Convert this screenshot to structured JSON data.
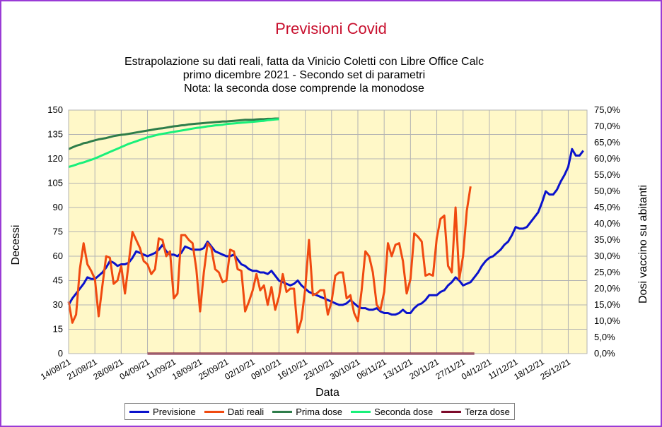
{
  "chart_data": {
    "type": "line",
    "title": "Previsioni Covid",
    "subtitle": [
      "Estrapolazione su dati reali, fatta da Vinicio Coletti con Libre Office Calc",
      "primo dicembre 2021 - Secondo set di parametri",
      "Nota: la seconda dose comprende la monodose"
    ],
    "xlabel": "Data",
    "ylabel": "Decessi",
    "y2label": "Dosi vaccino su abitanti",
    "ylim": [
      0,
      150
    ],
    "y2lim": [
      0,
      0.75
    ],
    "yticks": [
      "0",
      "15",
      "30",
      "45",
      "60",
      "75",
      "90",
      "105",
      "120",
      "135",
      "150"
    ],
    "y2ticks": [
      "0,0%",
      "5,0%",
      "10,0%",
      "15,0%",
      "20,0%",
      "25,0%",
      "30,0%",
      "35,0%",
      "40,0%",
      "45,0%",
      "50,0%",
      "55,0%",
      "60,0%",
      "65,0%",
      "70,0%",
      "75,0%"
    ],
    "xticks": [
      "14/08/21",
      "21/08/21",
      "28/08/21",
      "04/09/21",
      "11/09/21",
      "18/09/21",
      "25/09/21",
      "02/10/21",
      "09/10/21",
      "16/10/21",
      "23/10/21",
      "30/10/21",
      "06/11/21",
      "13/11/21",
      "20/11/21",
      "27/11/21",
      "04/12/21",
      "11/12/21",
      "18/12/21",
      "25/12/21"
    ],
    "x_start": "14/08/21",
    "grid": true,
    "legend_position": "bottom",
    "series": [
      {
        "name": "Previsione",
        "axis": "left",
        "color": "#0a12cc",
        "start_day": 0,
        "values": [
          30,
          34,
          37,
          40,
          43,
          47,
          46,
          46,
          48,
          50,
          53,
          57,
          56,
          54,
          55,
          55,
          56,
          59,
          63,
          62,
          61,
          60,
          61,
          62,
          64,
          67,
          63,
          61,
          61,
          60,
          62,
          66,
          65,
          64,
          64,
          64,
          65,
          69,
          66,
          63,
          62,
          61,
          60,
          60,
          61,
          58,
          55,
          54,
          52,
          51,
          51,
          50,
          50,
          49,
          51,
          48,
          45,
          44,
          43,
          42,
          43,
          45,
          42,
          40,
          38,
          37,
          36,
          35,
          34,
          33,
          32,
          31,
          30,
          30,
          31,
          33,
          31,
          29,
          28,
          28,
          27,
          27,
          28,
          26,
          25,
          25,
          24,
          24,
          25,
          27,
          25,
          25,
          28,
          30,
          31,
          33,
          36,
          36,
          36,
          38,
          39,
          42,
          44,
          47,
          45,
          42,
          43,
          44,
          47,
          50,
          54,
          57,
          59,
          60,
          62,
          64,
          67,
          69,
          73,
          78,
          77,
          77,
          78,
          81,
          84,
          87,
          93,
          100,
          98,
          98,
          101,
          106,
          110,
          115,
          126,
          122,
          122,
          125
        ]
      },
      {
        "name": "Dati reali",
        "axis": "left",
        "color": "#f04a10",
        "start_day": 0,
        "values": [
          32,
          19,
          24,
          52,
          68,
          55,
          51,
          46,
          23,
          42,
          60,
          59,
          43,
          45,
          54,
          37,
          56,
          75,
          70,
          65,
          57,
          55,
          49,
          52,
          71,
          70,
          60,
          63,
          34,
          37,
          73,
          73,
          70,
          68,
          52,
          26,
          50,
          68,
          65,
          52,
          50,
          44,
          45,
          64,
          63,
          52,
          51,
          26,
          32,
          39,
          49,
          39,
          42,
          30,
          41,
          27,
          35,
          49,
          38,
          40,
          40,
          13,
          21,
          40,
          70,
          36,
          37,
          39,
          39,
          24,
          32,
          48,
          50,
          50,
          34,
          36,
          25,
          20,
          39,
          63,
          60,
          50,
          30,
          27,
          38,
          68,
          60,
          67,
          68,
          57,
          37,
          46,
          74,
          72,
          69,
          48,
          49,
          48,
          71,
          83,
          85,
          54,
          50,
          90,
          46,
          60,
          88,
          103
        ]
      },
      {
        "name": "Prima dose",
        "axis": "right",
        "color": "#2e7d4a",
        "start_day": 0,
        "values": [
          0.63,
          0.635,
          0.64,
          0.643,
          0.648,
          0.65,
          0.654,
          0.657,
          0.66,
          0.662,
          0.664,
          0.667,
          0.67,
          0.672,
          0.674,
          0.675,
          0.677,
          0.679,
          0.681,
          0.683,
          0.685,
          0.687,
          0.689,
          0.691,
          0.693,
          0.694,
          0.696,
          0.698,
          0.7,
          0.701,
          0.703,
          0.704,
          0.706,
          0.707,
          0.708,
          0.709,
          0.71,
          0.711,
          0.712,
          0.713,
          0.714,
          0.715,
          0.715,
          0.716,
          0.717,
          0.718,
          0.719,
          0.72,
          0.72,
          0.72,
          0.721,
          0.722,
          0.722,
          0.723,
          0.723,
          0.724,
          0.724
        ]
      },
      {
        "name": "Seconda dose",
        "axis": "right",
        "color": "#19f07a",
        "start_day": 0,
        "values": [
          0.575,
          0.578,
          0.582,
          0.586,
          0.589,
          0.593,
          0.597,
          0.601,
          0.606,
          0.611,
          0.616,
          0.621,
          0.626,
          0.631,
          0.636,
          0.641,
          0.646,
          0.65,
          0.654,
          0.658,
          0.662,
          0.666,
          0.669,
          0.672,
          0.675,
          0.677,
          0.679,
          0.681,
          0.683,
          0.685,
          0.687,
          0.689,
          0.691,
          0.693,
          0.695,
          0.696,
          0.698,
          0.7,
          0.701,
          0.703,
          0.704,
          0.705,
          0.707,
          0.708,
          0.709,
          0.71,
          0.711,
          0.712,
          0.713,
          0.714,
          0.715,
          0.716,
          0.717,
          0.719,
          0.72,
          0.721,
          0.722
        ]
      },
      {
        "name": "Terza dose",
        "axis": "right",
        "color": "#7d0a2a",
        "start_day": 21,
        "values": [
          0.0,
          0.0,
          0.0,
          0.0,
          0.0,
          0.0,
          0.0,
          0.0,
          0.0,
          0.0,
          0.0,
          0.0,
          0.0,
          0.0,
          0.0,
          0.0,
          0.0,
          0.0,
          0.0,
          0.0,
          0.0,
          0.0,
          0.0,
          0.0,
          0.0,
          0.0,
          0.0,
          0.0,
          0.0,
          0.0,
          0.0,
          0.0,
          0.0,
          0.0,
          0.0,
          0.0,
          0.0,
          0.0,
          0.0,
          0.0,
          0.0,
          0.0,
          0.0,
          0.0,
          0.0,
          0.0,
          0.0,
          0.0,
          0.0,
          0.0,
          0.0,
          0.0,
          0.0,
          0.0,
          0.0,
          0.0,
          0.0,
          0.0,
          0.0,
          0.0,
          0.0,
          0.0,
          0.0,
          0.0,
          0.0,
          0.0,
          0.0,
          0.0,
          0.0,
          0.0,
          0.0,
          0.0,
          0.0,
          0.0,
          0.0,
          0.0,
          0.0,
          0.0,
          0.0,
          0.0,
          0.0,
          0.0,
          0.0,
          0.0,
          0.0,
          0.0,
          0.0,
          0.0
        ]
      }
    ]
  }
}
